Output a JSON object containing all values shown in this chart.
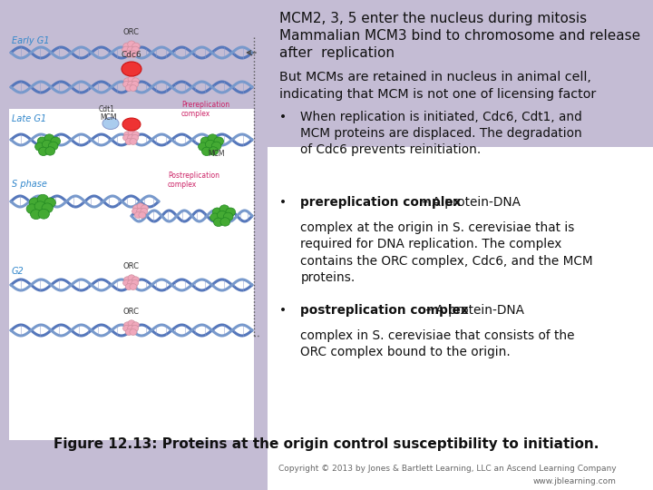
{
  "bg_left_color": "#c8c0d8",
  "bg_right_color": "#ffffff",
  "title_line1": "MCM2, 3, 5 enter the nucleus during mitosis",
  "title_line2": "Mammalian MCM3 bind to chromosome and release",
  "title_line3": "after  replication",
  "subtitle_line1": "But MCMs are retained in nucleus in animal cell,",
  "subtitle_line2": "indicating that MCM is not one of licensing factor",
  "bullet1": "When replication is initiated, Cdc6, Cdt1, and\nMCM proteins are displaced. The degradation\nof Cdc6 prevents reinitiation.",
  "bullet2_bold": "prereplication complex",
  "bullet2_text": " – A protein-DNA\ncomplex at the origin in S. cerevisiae that is\nrequired for DNA replication. The complex\ncontains the ORC complex, Cdc6, and the MCM\nproteins.",
  "bullet3_bold": "postreplication complex",
  "bullet3_text": " – A protein-DNA\ncomplex in S. cerevisiae that consists of the\nORC complex bound to the origin.",
  "figure_caption": "Figure 12.13: Proteins at the origin control susceptibility to initiation.",
  "copyright": "Copyright © 2013 by Jones & Bartlett Learning, LLC an Ascend Learning Company",
  "website": "www.jblearning.com",
  "dna_color1": "#5577bb",
  "dna_color2": "#7799cc",
  "orc_color": "#f0a8bc",
  "mcm_color": "#44aa33",
  "cdc6_color": "#ee3333",
  "cdt1_color": "#aaccee",
  "label_color": "#3388cc",
  "pink_label": "#cc2266"
}
